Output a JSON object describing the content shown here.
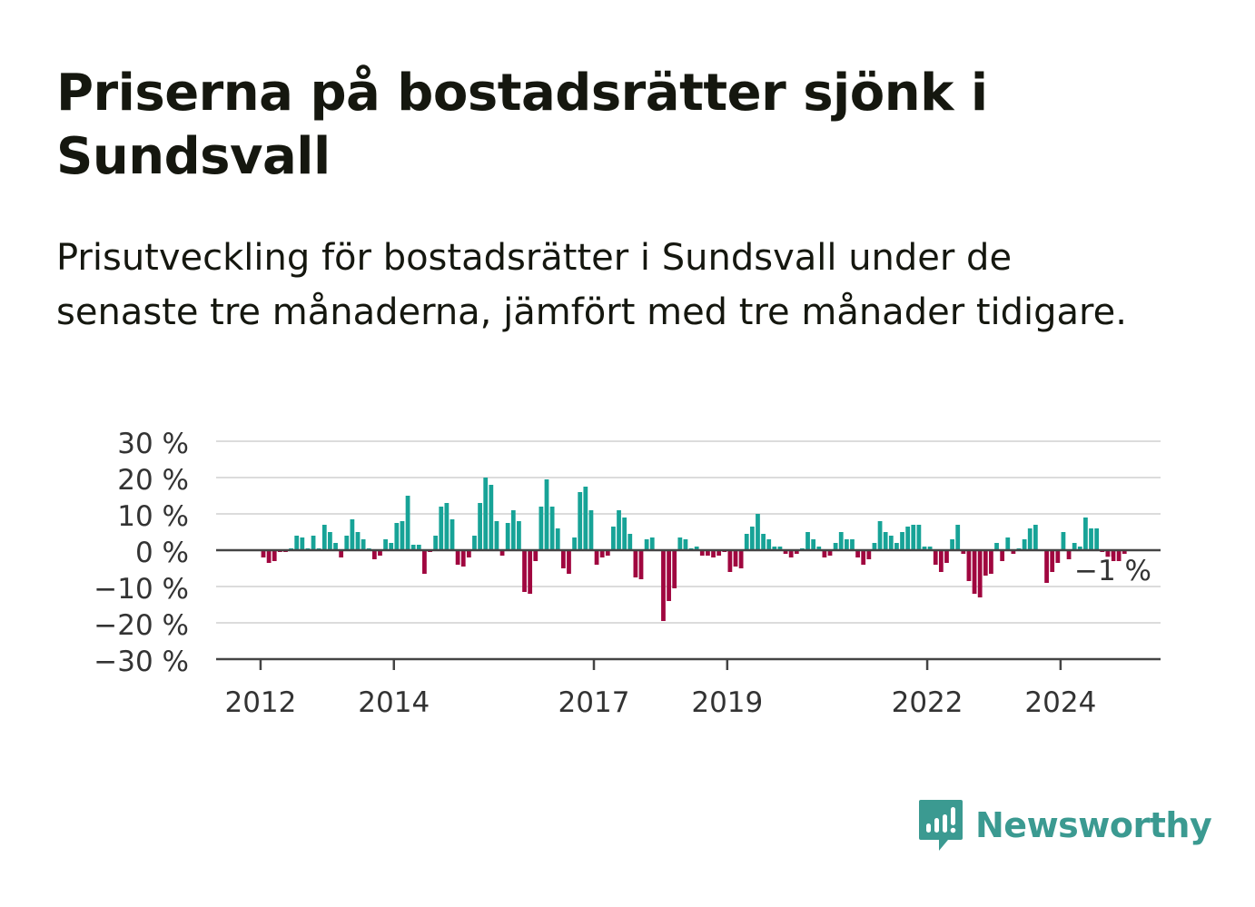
{
  "title": "Priserna på bostadsrätter sjönk i Sundsvall",
  "subtitle": "Prisutveckling för bostadsrätter i Sundsvall under de senaste tre månaderna, jämfört med tre månader tidigare.",
  "brand": "Newsworthy",
  "colors": {
    "positive": "#17a397",
    "negative": "#a0063f",
    "brand": "#3b9a91"
  },
  "chart_data": {
    "type": "bar",
    "y_tick_labels": [
      "30 %",
      "20 %",
      "10 %",
      "0 %",
      "−10 %",
      "−20 %",
      "−30 %"
    ],
    "y_ticks": [
      30,
      20,
      10,
      0,
      -10,
      -20,
      -30
    ],
    "ylim": [
      -30,
      30
    ],
    "x_tick_labels": [
      "2012",
      "2014",
      "2017",
      "2019",
      "2022",
      "2024"
    ],
    "x_ticks": [
      "2012-01",
      "2014-01",
      "2017-01",
      "2019-01",
      "2022-01",
      "2024-01"
    ],
    "x_range": [
      "2011-05",
      "2025-06"
    ],
    "last_value_label": "−1 %",
    "grid": true,
    "unit": "%",
    "series": [
      {
        "x": [
          "2011-05",
          "2011-06",
          "2011-07",
          "2011-08",
          "2011-09",
          "2011-10",
          "2011-11",
          "2011-12",
          "2012-01",
          "2012-02",
          "2012-03",
          "2012-04",
          "2012-05",
          "2012-06",
          "2012-07",
          "2012-08",
          "2012-09",
          "2012-10",
          "2012-11",
          "2012-12",
          "2013-01",
          "2013-02",
          "2013-03",
          "2013-04",
          "2013-05",
          "2013-06",
          "2013-07",
          "2013-08",
          "2013-09",
          "2013-10",
          "2013-11",
          "2013-12",
          "2014-01",
          "2014-02",
          "2014-03",
          "2014-04",
          "2014-05",
          "2014-06",
          "2014-07",
          "2014-08",
          "2014-09",
          "2014-10",
          "2014-11",
          "2014-12",
          "2015-01",
          "2015-02",
          "2015-03",
          "2015-04",
          "2015-05",
          "2015-06",
          "2015-07",
          "2015-08",
          "2015-09",
          "2015-10",
          "2015-11",
          "2015-12",
          "2016-01",
          "2016-02",
          "2016-03",
          "2016-04",
          "2016-05",
          "2016-06",
          "2016-07",
          "2016-08",
          "2016-09",
          "2016-10",
          "2016-11",
          "2016-12",
          "2017-01",
          "2017-02",
          "2017-03",
          "2017-04",
          "2017-05",
          "2017-06",
          "2017-07",
          "2017-08",
          "2017-09",
          "2017-10",
          "2017-11",
          "2017-12",
          "2018-01",
          "2018-02",
          "2018-03",
          "2018-04",
          "2018-05",
          "2018-06",
          "2018-07",
          "2018-08",
          "2018-09",
          "2018-10",
          "2018-11",
          "2018-12",
          "2019-01",
          "2019-02",
          "2019-03",
          "2019-04",
          "2019-05",
          "2019-06",
          "2019-07",
          "2019-08",
          "2019-09",
          "2019-10",
          "2019-11",
          "2019-12",
          "2020-01",
          "2020-02",
          "2020-03",
          "2020-04",
          "2020-05",
          "2020-06",
          "2020-07",
          "2020-08",
          "2020-09",
          "2020-10",
          "2020-11",
          "2020-12",
          "2021-01",
          "2021-02",
          "2021-03",
          "2021-04",
          "2021-05",
          "2021-06",
          "2021-07",
          "2021-08",
          "2021-09",
          "2021-10",
          "2021-11",
          "2021-12",
          "2022-01",
          "2022-02",
          "2022-03",
          "2022-04",
          "2022-05",
          "2022-06",
          "2022-07",
          "2022-08",
          "2022-09",
          "2022-10",
          "2022-11",
          "2022-12",
          "2023-01",
          "2023-02",
          "2023-03",
          "2023-04",
          "2023-05",
          "2023-06",
          "2023-07",
          "2023-08",
          "2023-09",
          "2023-10",
          "2023-11",
          "2023-12",
          "2024-01",
          "2024-02",
          "2024-03",
          "2024-04",
          "2024-05",
          "2024-06",
          "2024-07",
          "2024-08",
          "2024-09",
          "2024-10",
          "2024-11",
          "2024-12",
          "2025-01",
          "2025-02",
          "2025-03",
          "2025-04",
          "2025-05",
          "2025-06"
        ],
        "values": [
          0,
          0,
          0,
          0,
          0,
          0,
          0,
          0,
          -2,
          -3.5,
          -3,
          -0.5,
          -0.5,
          0.5,
          4,
          3.5,
          0.5,
          4,
          0.5,
          7,
          5,
          2,
          -2,
          4,
          8.5,
          5,
          3,
          0.5,
          -2.5,
          -1.5,
          3,
          2,
          7.5,
          8,
          15,
          1.5,
          1.5,
          -6.5,
          -0.5,
          4,
          12,
          13,
          8.5,
          -4,
          -4.5,
          -2,
          4,
          13,
          20,
          18,
          8,
          -1.5,
          7.5,
          11,
          8,
          -11.5,
          -12,
          -3,
          12,
          19.5,
          12,
          6,
          -5,
          -6.5,
          3.5,
          16,
          17.5,
          11,
          -4,
          -2,
          -1.5,
          6.5,
          11,
          9,
          4.5,
          -7.5,
          -8,
          3,
          3.5,
          0,
          -19.5,
          -14,
          -10.5,
          3.5,
          3,
          0.5,
          1,
          -1.5,
          -1.5,
          -2,
          -1.5,
          -0.5,
          -6,
          -4.5,
          -5,
          4.5,
          6.5,
          10,
          4.5,
          3,
          1,
          1,
          -1,
          -2,
          -1,
          0.5,
          5,
          3,
          1,
          -2,
          -1.5,
          2,
          5,
          3,
          3,
          -2,
          -4,
          -2.5,
          2,
          8,
          5,
          4,
          2,
          5,
          6.5,
          7,
          7,
          1,
          1,
          -4,
          -6,
          -3.5,
          3,
          7,
          -1,
          -8.5,
          -12,
          -13,
          -7,
          -6.5,
          2,
          -3,
          3.5,
          -1,
          0.5,
          3,
          6,
          7,
          0,
          -9,
          -6,
          -3.5,
          5,
          -2.5,
          2,
          1,
          9,
          6,
          6,
          -0.5,
          -2.5,
          -3,
          -3,
          -1,
          0,
          0,
          0,
          0,
          0,
          0
        ]
      }
    ]
  }
}
